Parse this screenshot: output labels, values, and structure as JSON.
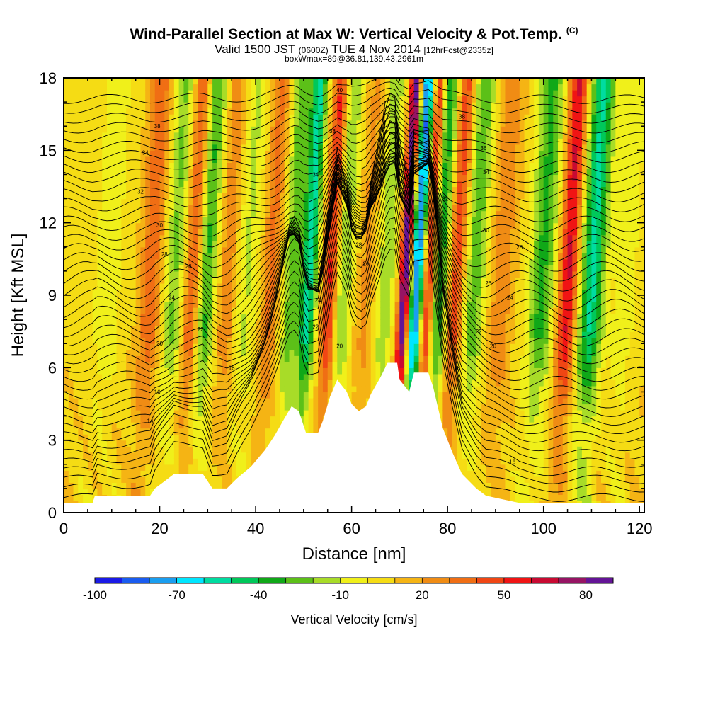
{
  "header": {
    "title_main": "Wind-Parallel Section at Max W: Vertical Velocity & Pot.Temp.",
    "title_mark": "(C)",
    "subtitle_a": "Valid 1500 JST",
    "subtitle_b": "(0600Z)",
    "subtitle_c": "TUE 4 Nov 2014",
    "subtitle_d": "[12hrFcst@2335z]",
    "subtitle2": "boxWmax=89@36.81,139.43,2961m"
  },
  "chart_data": {
    "type": "heatmap",
    "xlabel": "Distance [nm]",
    "ylabel": "Height [Kft MSL]",
    "xlim": [
      0,
      121
    ],
    "ylim": [
      0,
      18
    ],
    "x_ticks": [
      0,
      20,
      40,
      60,
      80,
      100,
      120
    ],
    "y_ticks": [
      0,
      3,
      6,
      9,
      12,
      15,
      18
    ],
    "colorbar": {
      "label": "Vertical Velocity [cm/s]",
      "min": -100,
      "max": 90,
      "step": 10,
      "tick_labels": [
        "-100",
        "-70",
        "-40",
        "-10",
        "20",
        "50",
        "80"
      ],
      "colors": [
        "#1a1ae6",
        "#1a5cf0",
        "#1a9ef0",
        "#00e6ff",
        "#00dca0",
        "#00c85a",
        "#10a818",
        "#5cc018",
        "#a8dc28",
        "#f0f01a",
        "#f5dc14",
        "#f5b414",
        "#f08c14",
        "#f06e14",
        "#f04614",
        "#f01414",
        "#c80a32",
        "#961464",
        "#641496"
      ]
    },
    "bands": [
      {
        "x": 9,
        "w": 3,
        "v": -15
      },
      {
        "x": 18,
        "w": 2.2,
        "v": 30
      },
      {
        "x": 23,
        "w": 2.2,
        "v": -30
      },
      {
        "x": 27,
        "w": 2,
        "v": 40
      },
      {
        "x": 29.5,
        "w": 2.2,
        "v": -45
      },
      {
        "x": 34,
        "w": 2.2,
        "v": 20
      },
      {
        "x": 38,
        "w": 2.5,
        "v": -20
      },
      {
        "x": 43,
        "w": 2,
        "v": 25
      },
      {
        "x": 47.5,
        "w": 2.2,
        "v": -35
      },
      {
        "x": 51,
        "w": 1.6,
        "v": -60
      },
      {
        "x": 55.5,
        "w": 1.6,
        "v": 50
      },
      {
        "x": 58,
        "w": 2.2,
        "v": -30
      },
      {
        "x": 63,
        "w": 2.2,
        "v": 15
      },
      {
        "x": 67,
        "w": 2.2,
        "v": -25
      },
      {
        "x": 71,
        "w": 1.2,
        "v": 85
      },
      {
        "x": 73.5,
        "w": 1.4,
        "v": -90
      },
      {
        "x": 76,
        "w": 1.2,
        "v": 55
      },
      {
        "x": 78.5,
        "w": 2.2,
        "v": -45
      },
      {
        "x": 81.5,
        "w": 1.8,
        "v": 45
      },
      {
        "x": 85.5,
        "w": 2.4,
        "v": -35
      },
      {
        "x": 91,
        "w": 2.5,
        "v": 20
      },
      {
        "x": 99.5,
        "w": 2.8,
        "v": -40
      },
      {
        "x": 105,
        "w": 2,
        "v": 55
      },
      {
        "x": 110,
        "w": 2.6,
        "v": -60
      },
      {
        "x": 117,
        "w": 2.5,
        "v": -15
      }
    ],
    "terrain": [
      [
        0,
        0.4
      ],
      [
        6,
        0.4
      ],
      [
        6.5,
        0.7
      ],
      [
        18,
        0.7
      ],
      [
        19,
        1.0
      ],
      [
        21,
        1.3
      ],
      [
        23,
        1.6
      ],
      [
        29,
        1.6
      ],
      [
        31,
        1.0
      ],
      [
        34,
        1.0
      ],
      [
        36,
        1.4
      ],
      [
        39,
        1.9
      ],
      [
        42,
        2.6
      ],
      [
        44,
        3.2
      ],
      [
        46,
        3.9
      ],
      [
        47.5,
        4.4
      ],
      [
        49,
        4.2
      ],
      [
        50.5,
        3.3
      ],
      [
        53,
        3.3
      ],
      [
        54,
        3.8
      ],
      [
        55.5,
        4.8
      ],
      [
        57,
        5.5
      ],
      [
        59,
        5.0
      ],
      [
        60,
        4.5
      ],
      [
        61.5,
        4.2
      ],
      [
        63,
        4.4
      ],
      [
        64,
        4.9
      ],
      [
        66,
        5.6
      ],
      [
        67.5,
        6.2
      ],
      [
        69.5,
        6.2
      ],
      [
        70,
        5.5
      ],
      [
        72,
        5.0
      ],
      [
        73,
        5.8
      ],
      [
        76,
        5.8
      ],
      [
        77,
        5.2
      ],
      [
        79,
        3.5
      ],
      [
        81,
        2.5
      ],
      [
        83,
        1.6
      ],
      [
        86,
        1.0
      ],
      [
        88,
        0.7
      ],
      [
        95,
        0.4
      ],
      [
        121,
        0.4
      ]
    ],
    "contour_labels": [
      {
        "x": 57.5,
        "y": 17.5,
        "text": "40"
      },
      {
        "x": 56,
        "y": 15.8,
        "text": "38"
      },
      {
        "x": 19.5,
        "y": 16.0,
        "text": "38"
      },
      {
        "x": 17,
        "y": 14.9,
        "text": "34"
      },
      {
        "x": 16,
        "y": 13.3,
        "text": "32"
      },
      {
        "x": 20,
        "y": 11.9,
        "text": "30"
      },
      {
        "x": 21,
        "y": 10.7,
        "text": "28"
      },
      {
        "x": 26,
        "y": 10.2,
        "text": "26"
      },
      {
        "x": 22.5,
        "y": 8.9,
        "text": "24"
      },
      {
        "x": 28.5,
        "y": 7.6,
        "text": "22"
      },
      {
        "x": 20,
        "y": 7.0,
        "text": "20"
      },
      {
        "x": 35,
        "y": 6.0,
        "text": "18"
      },
      {
        "x": 19.5,
        "y": 5.0,
        "text": "16"
      },
      {
        "x": 18,
        "y": 3.8,
        "text": "14"
      },
      {
        "x": 47,
        "y": 11.6,
        "text": "30"
      },
      {
        "x": 53,
        "y": 8.8,
        "text": "24"
      },
      {
        "x": 52.5,
        "y": 7.7,
        "text": "22"
      },
      {
        "x": 57.5,
        "y": 6.9,
        "text": "20"
      },
      {
        "x": 59.5,
        "y": 13.2,
        "text": "26"
      },
      {
        "x": 61.5,
        "y": 11.1,
        "text": "28"
      },
      {
        "x": 63,
        "y": 10.3,
        "text": "26"
      },
      {
        "x": 52.5,
        "y": 14.0,
        "text": "34"
      },
      {
        "x": 83,
        "y": 16.4,
        "text": "38"
      },
      {
        "x": 87.5,
        "y": 15.1,
        "text": "36"
      },
      {
        "x": 88,
        "y": 14.1,
        "text": "34"
      },
      {
        "x": 79.5,
        "y": 13.0,
        "text": "32"
      },
      {
        "x": 88,
        "y": 11.7,
        "text": "30"
      },
      {
        "x": 95,
        "y": 11.0,
        "text": "28"
      },
      {
        "x": 88.5,
        "y": 9.5,
        "text": "26"
      },
      {
        "x": 93,
        "y": 8.9,
        "text": "24"
      },
      {
        "x": 86.5,
        "y": 7.5,
        "text": "22"
      },
      {
        "x": 89.5,
        "y": 6.9,
        "text": "20"
      },
      {
        "x": 82,
        "y": 6.0,
        "text": "18"
      },
      {
        "x": 93.5,
        "y": 2.1,
        "text": "16"
      }
    ]
  }
}
